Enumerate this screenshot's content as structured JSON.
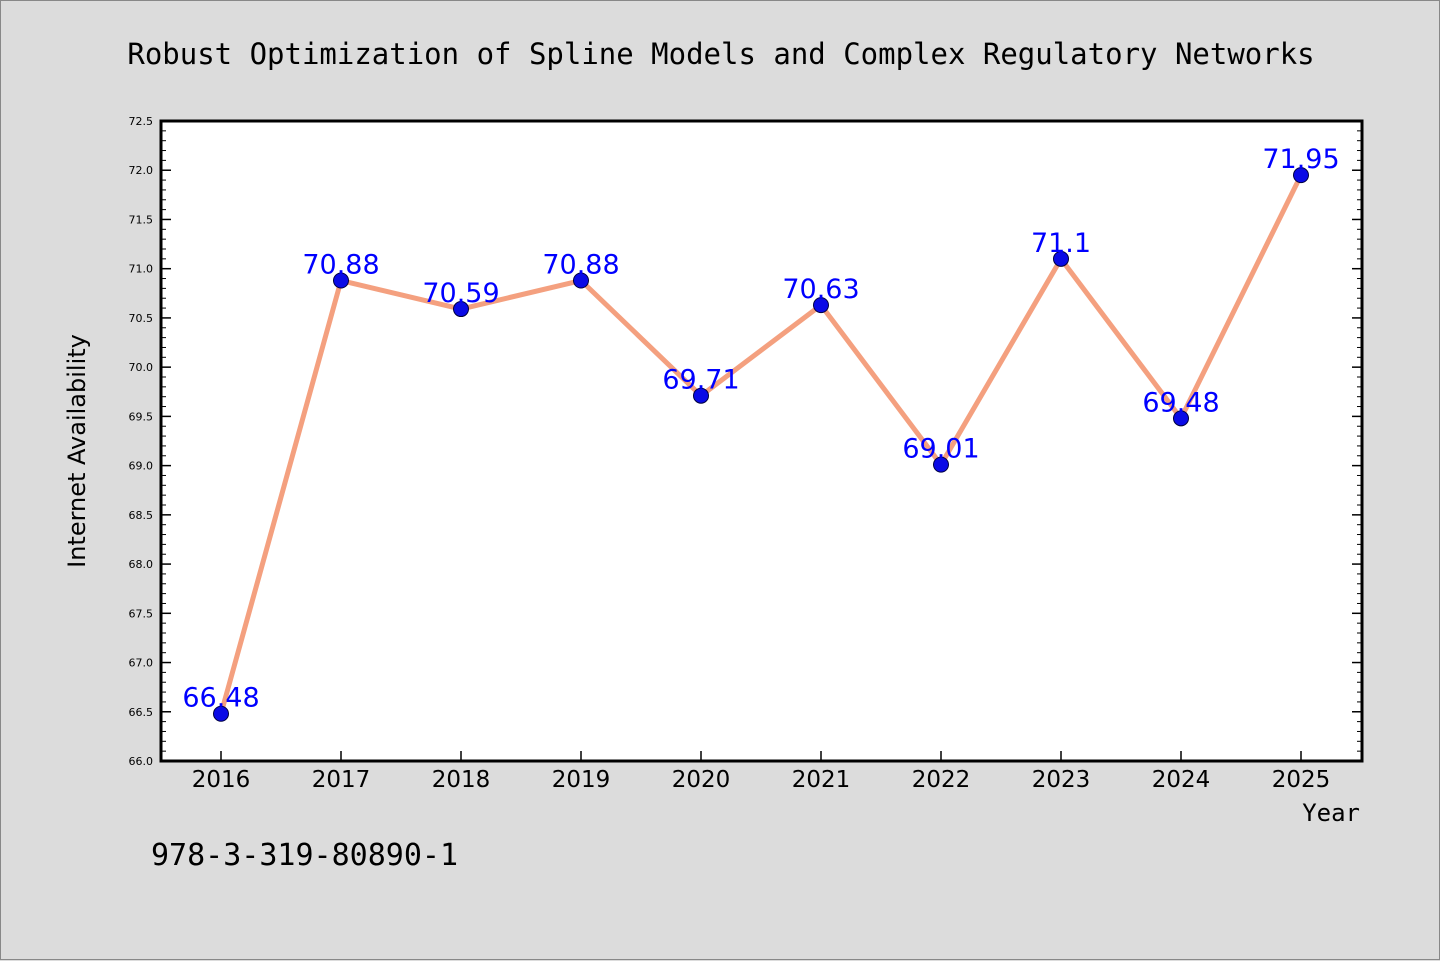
{
  "chart_data": {
    "type": "line",
    "title": "Robust Optimization of Spline Models and Complex Regulatory Networks",
    "xlabel": "Year",
    "ylabel": "Internet Availability",
    "categories": [
      "2016",
      "2017",
      "2018",
      "2019",
      "2020",
      "2021",
      "2022",
      "2023",
      "2024",
      "2025"
    ],
    "series": [
      {
        "values": [
          66.48,
          70.88,
          70.59,
          70.88,
          69.71,
          70.63,
          69.01,
          71.1,
          69.48,
          71.95
        ],
        "labels": [
          "66.48",
          "70.88",
          "70.59",
          "70.88",
          "69.71",
          "70.63",
          "69.01",
          "71.1",
          "69.48",
          "71.95"
        ],
        "line_color": "#f4a07f",
        "marker_color": "#0a0ae6",
        "label_color": "#0000ff"
      }
    ],
    "ylim": [
      66.0,
      72.5
    ],
    "yticks": [
      "66.0",
      "66.5",
      "67.0",
      "67.5",
      "68.0",
      "68.5",
      "69.0",
      "69.5",
      "70.0",
      "70.5",
      "71.0",
      "71.5",
      "72.0",
      "72.5"
    ],
    "grid": false,
    "legend": "none"
  },
  "annotation": "978-3-319-80890-1"
}
